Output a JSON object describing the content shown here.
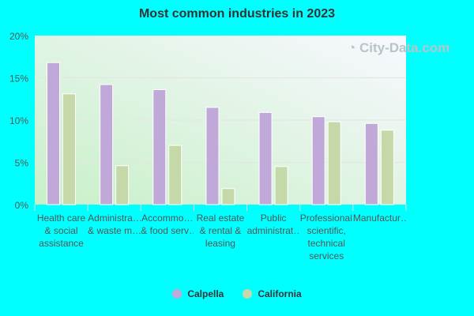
{
  "chart_data": {
    "type": "bar",
    "title": "Most common industries in 2023",
    "categories": [
      "Health care\n& social\nassistance",
      "Administra…\n& waste m…",
      "Accommo…\n& food serv…",
      "Real estate\n& rental &\nleasing",
      "Public\nadministrat…",
      "Professional,\nscientific,\ntechnical\nservices",
      "Manufactur…"
    ],
    "series": [
      {
        "name": "Calpella",
        "color": "#c0a8d8",
        "values": [
          16.8,
          14.2,
          13.6,
          11.5,
          10.9,
          10.4,
          9.6
        ]
      },
      {
        "name": "California",
        "color": "#c4d8a8",
        "values": [
          13.1,
          4.6,
          7.0,
          1.9,
          4.5,
          9.8,
          8.8
        ]
      }
    ],
    "ylim": [
      0,
      20
    ],
    "yticks": [
      "0%",
      "5%",
      "10%",
      "15%",
      "20%"
    ],
    "grid": true,
    "legend": "bottom",
    "watermark": "City-Data.com"
  }
}
